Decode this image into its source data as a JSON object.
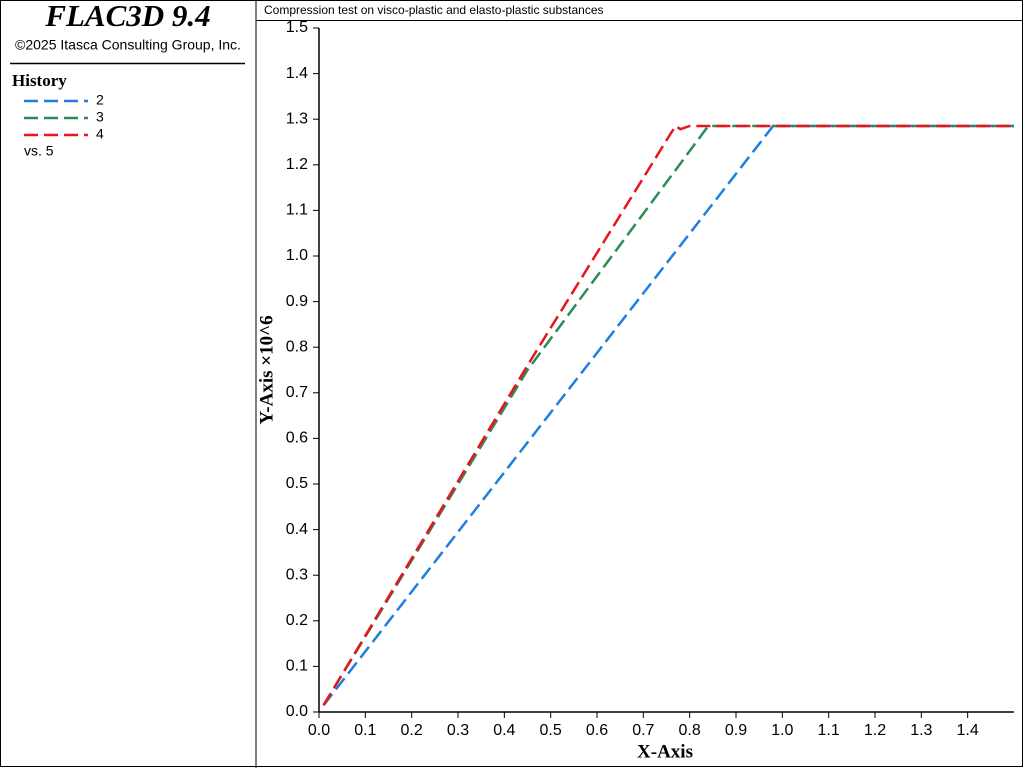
{
  "app": {
    "name": "FLAC3D 9.4",
    "copyright": "©2025 Itasca Consulting Group, Inc.",
    "legend_title": "History",
    "legend_footer": "vs. 5"
  },
  "chart_data": {
    "type": "line",
    "title": "Compression test on visco-plastic and elasto-plastic substances",
    "x_label": "X-Axis",
    "y_label": "Y-Axis ×10^6",
    "xlim": [
      0,
      1.5
    ],
    "ylim": [
      0,
      1.5
    ],
    "xticks": [
      {
        "value": 0,
        "label": "0.0"
      },
      0.1,
      0.2,
      0.3,
      0.4,
      0.5,
      0.6,
      0.7,
      0.8,
      0.9,
      {
        "value": 1,
        "label": "1.0"
      },
      1.1,
      1.2,
      1.3,
      1.4
    ],
    "yticks": [
      {
        "value": 0,
        "label": "0.0"
      },
      0.1,
      0.2,
      0.3,
      0.4,
      0.5,
      0.6,
      0.7,
      0.8,
      0.9,
      {
        "value": 1,
        "label": "1.0"
      },
      1.1,
      1.2,
      1.3,
      1.4,
      1.5
    ],
    "series": [
      {
        "name": "2",
        "color": "#1f7fe0",
        "x": [
          0.01,
          0.98,
          1.5
        ],
        "values": [
          0.015,
          1.285,
          1.285
        ]
      },
      {
        "name": "3",
        "color": "#2e8b57",
        "x": [
          0.01,
          0.45,
          0.84,
          1.5
        ],
        "values": [
          0.015,
          0.75,
          1.285,
          1.285
        ]
      },
      {
        "name": "4",
        "color": "#e8141e",
        "x": [
          0.01,
          0.45,
          0.76,
          0.77,
          0.78,
          0.8,
          1.5
        ],
        "values": [
          0.015,
          0.76,
          1.27,
          1.285,
          1.278,
          1.285,
          1.285
        ]
      }
    ]
  }
}
